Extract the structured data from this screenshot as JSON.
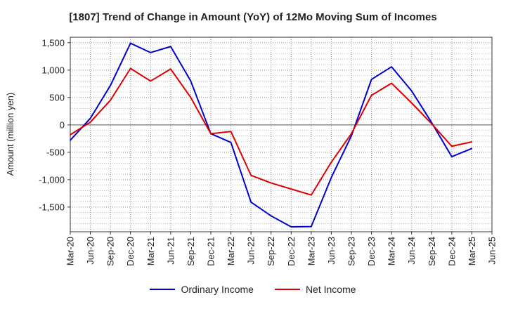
{
  "chart_data": {
    "type": "line",
    "title": "[1807]  Trend of Change in Amount (YoY) of 12Mo Moving Sum of Incomes",
    "xlabel": "",
    "ylabel": "Amount (million yen)",
    "categories": [
      "Mar-20",
      "Jun-20",
      "Sep-20",
      "Dec-20",
      "Mar-21",
      "Jun-21",
      "Sep-21",
      "Dec-21",
      "Mar-22",
      "Jun-22",
      "Sep-22",
      "Dec-22",
      "Mar-23",
      "Jun-23",
      "Sep-23",
      "Dec-23",
      "Mar-24",
      "Jun-24",
      "Sep-24",
      "Dec-24",
      "Mar-25",
      "Jun-25"
    ],
    "y_ticks": [
      1500,
      1000,
      500,
      0,
      -500,
      -1000,
      -1500
    ],
    "y_tick_labels": [
      "1,500",
      "1,000",
      "500",
      "0",
      "-500",
      "-1,000",
      "-1,500"
    ],
    "ylim": [
      -1950,
      1600
    ],
    "grid": true,
    "legend_position": "bottom",
    "series": [
      {
        "name": "Ordinary Income",
        "color": "#0000cc",
        "values": [
          -280,
          120,
          720,
          1490,
          1320,
          1430,
          800,
          -160,
          -320,
          -1410,
          -1660,
          -1860,
          -1855,
          -960,
          -200,
          830,
          1060,
          620,
          40,
          -580,
          -430,
          null
        ]
      },
      {
        "name": "Net Income",
        "color": "#dd0000",
        "values": [
          -180,
          50,
          450,
          1030,
          800,
          1020,
          500,
          -160,
          -120,
          -920,
          -1060,
          -1170,
          -1280,
          -680,
          -160,
          540,
          760,
          400,
          20,
          -390,
          -310,
          null
        ]
      }
    ]
  }
}
